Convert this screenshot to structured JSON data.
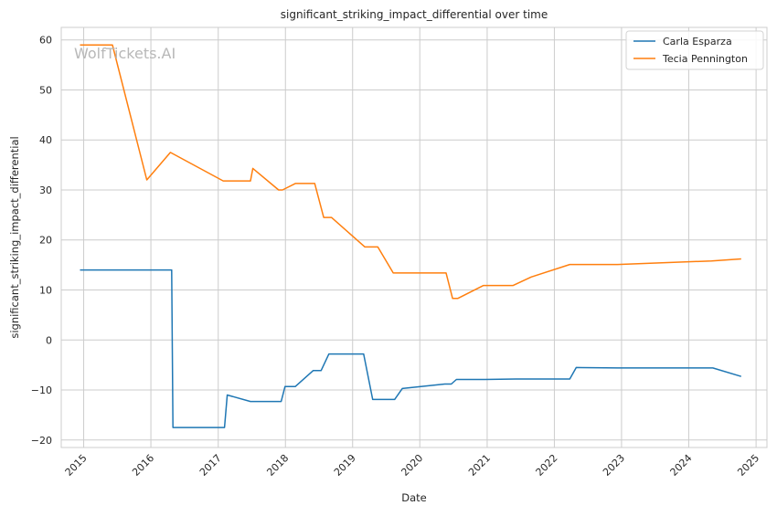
{
  "chart_data": {
    "type": "line",
    "title": "significant_striking_impact_differential over time",
    "xlabel": "Date",
    "ylabel": "significant_striking_impact_differential",
    "watermark": "WolfTickets.AI",
    "xlim": [
      "2014-09-01",
      "2025-03-01"
    ],
    "ylim": [
      -21.5,
      62.5
    ],
    "x_ticks": [
      "2015",
      "2016",
      "2017",
      "2018",
      "2019",
      "2020",
      "2021",
      "2022",
      "2023",
      "2024",
      "2025"
    ],
    "y_ticks": [
      -20,
      -10,
      0,
      10,
      20,
      30,
      40,
      50,
      60
    ],
    "y_tick_labels": [
      "−20",
      "−10",
      "0",
      "10",
      "20",
      "30",
      "40",
      "50",
      "60"
    ],
    "grid": true,
    "legend_position": "top-right",
    "series": [
      {
        "name": "Carla Esparza",
        "color": "#1f77b4",
        "points": [
          [
            "2014-12-12",
            14.0
          ],
          [
            "2016-04-23",
            14.0
          ],
          [
            "2016-04-30",
            -17.5
          ],
          [
            "2017-02-04",
            -17.5
          ],
          [
            "2017-02-19",
            -11.0
          ],
          [
            "2017-06-25",
            -12.3
          ],
          [
            "2017-12-09",
            -12.3
          ],
          [
            "2017-12-30",
            -9.3
          ],
          [
            "2018-02-24",
            -9.3
          ],
          [
            "2018-06-01",
            -6.1
          ],
          [
            "2018-07-14",
            -6.1
          ],
          [
            "2018-08-25",
            -2.8
          ],
          [
            "2019-03-02",
            -2.8
          ],
          [
            "2019-04-20",
            -11.9
          ],
          [
            "2019-08-17",
            -11.9
          ],
          [
            "2019-09-28",
            -9.7
          ],
          [
            "2020-05-16",
            -8.8
          ],
          [
            "2020-06-20",
            -8.8
          ],
          [
            "2020-07-18",
            -7.9
          ],
          [
            "2020-12-19",
            -7.9
          ],
          [
            "2021-06-05",
            -7.8
          ],
          [
            "2022-03-26",
            -7.8
          ],
          [
            "2022-04-30",
            -5.5
          ],
          [
            "2022-12-10",
            -5.6
          ],
          [
            "2024-05-11",
            -5.6
          ],
          [
            "2024-10-12",
            -7.3
          ]
        ]
      },
      {
        "name": "Tecia Pennington",
        "color": "#ff7f0e",
        "points": [
          [
            "2014-12-12",
            59.0
          ],
          [
            "2015-06-06",
            59.0
          ],
          [
            "2015-12-10",
            32.0
          ],
          [
            "2016-04-16",
            37.5
          ],
          [
            "2017-01-28",
            31.8
          ],
          [
            "2017-06-25",
            31.8
          ],
          [
            "2017-07-08",
            34.3
          ],
          [
            "2017-11-25",
            30.0
          ],
          [
            "2017-12-16",
            30.0
          ],
          [
            "2018-02-24",
            31.3
          ],
          [
            "2018-06-09",
            31.3
          ],
          [
            "2018-07-28",
            24.5
          ],
          [
            "2018-09-08",
            24.5
          ],
          [
            "2019-03-09",
            18.6
          ],
          [
            "2019-05-18",
            18.6
          ],
          [
            "2019-08-10",
            13.4
          ],
          [
            "2020-05-23",
            13.4
          ],
          [
            "2020-06-27",
            8.3
          ],
          [
            "2020-07-25",
            8.3
          ],
          [
            "2020-12-12",
            10.9
          ],
          [
            "2021-05-22",
            10.9
          ],
          [
            "2021-08-28",
            12.6
          ],
          [
            "2022-03-26",
            15.1
          ],
          [
            "2022-12-10",
            15.1
          ],
          [
            "2024-05-04",
            15.8
          ],
          [
            "2024-10-12",
            16.2
          ]
        ]
      }
    ]
  }
}
